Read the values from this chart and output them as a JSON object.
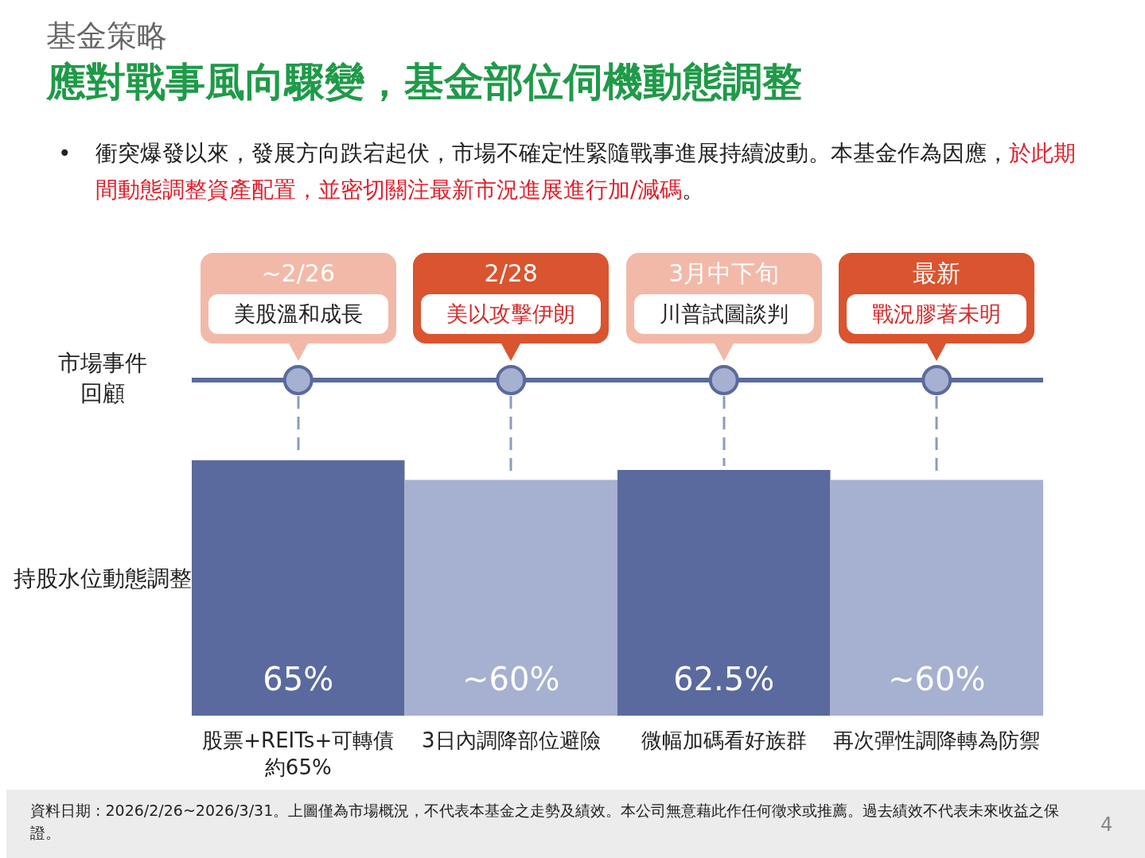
{
  "chart_data": {
    "type": "bar",
    "subtitle": "基金策略",
    "title": "應對戰事風向驟變，基金部位伺機動態調整",
    "ylabel": "持股水位動態調整",
    "categories": [
      "股票+REITs+可轉債約65%",
      "3日內調降部位避險",
      "微幅加碼看好族群",
      "再次彈性調降轉為防禦"
    ],
    "values": [
      65,
      60,
      62.5,
      60
    ],
    "value_labels": [
      "65%",
      "~60%",
      "62.5%",
      "~60%"
    ],
    "colors": [
      "#5a6a9e",
      "#a6b0d0",
      "#5a6a9e",
      "#a6b0d0"
    ],
    "annotations": [
      "•",
      "衝突爆發以來，發展方向跌宕起伏，市場不確定性緊隨戰事進展持續波動。本基金作為因應，",
      "於此期間動態調整資產配置，並密切關注最新市況進展進行加/減碼",
      "。",
      "市場事件回顧",
      "~2/26",
      "美股溫和成長",
      "2/28",
      "美以攻擊伊朗",
      "3月中下旬",
      "川普試圖談判",
      "最新",
      "戰況膠著未明",
      "資料日期 : 2026/2/26~2026/3/31。上圖僅為市場概況，不代表本基金之走勢及績效。本公司無意藉此作任何徵求或推薦。過去績效不代表未來收益之保證。",
      "4"
    ]
  }
}
